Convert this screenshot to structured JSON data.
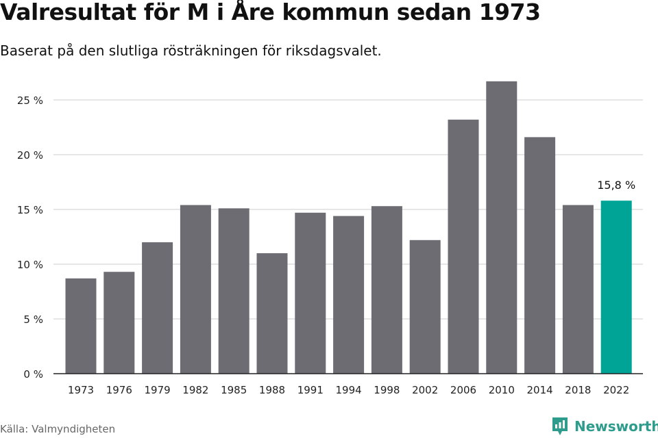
{
  "title": "Valresultat för M i Åre kommun sedan 1973",
  "subtitle": "Baserat på den slutliga rösträkningen för riksdagsvalet.",
  "source": "Källa: Valmyndigheten",
  "brand": {
    "name": "Newsworthy",
    "icon": "newsworthy-logo-icon"
  },
  "colors": {
    "bar": "#6d6c72",
    "highlight": "#00a497",
    "grid": "#dedede",
    "axis": "#222222",
    "brand": "#2e9c8c"
  },
  "chart_data": {
    "type": "bar",
    "title": "Valresultat för M i Åre kommun sedan 1973",
    "subtitle": "Baserat på den slutliga rösträkningen för riksdagsvalet.",
    "categories": [
      "1973",
      "1976",
      "1979",
      "1982",
      "1985",
      "1988",
      "1991",
      "1994",
      "1998",
      "2002",
      "2006",
      "2010",
      "2014",
      "2018",
      "2022"
    ],
    "values": [
      8.7,
      9.3,
      12.0,
      15.4,
      15.1,
      11.0,
      14.7,
      14.4,
      15.3,
      12.2,
      23.2,
      26.7,
      21.6,
      15.4,
      15.8
    ],
    "unit": "%",
    "ylim": [
      0,
      25
    ],
    "yticks": [
      0,
      5,
      10,
      15,
      20,
      25
    ],
    "ytick_labels": [
      "0 %",
      "5 %",
      "10 %",
      "15 %",
      "20 %",
      "25 %"
    ],
    "highlight_index": 14,
    "data_labels": [
      {
        "index": 14,
        "text": "15,8 %"
      }
    ],
    "grid": true,
    "legend": "none"
  }
}
